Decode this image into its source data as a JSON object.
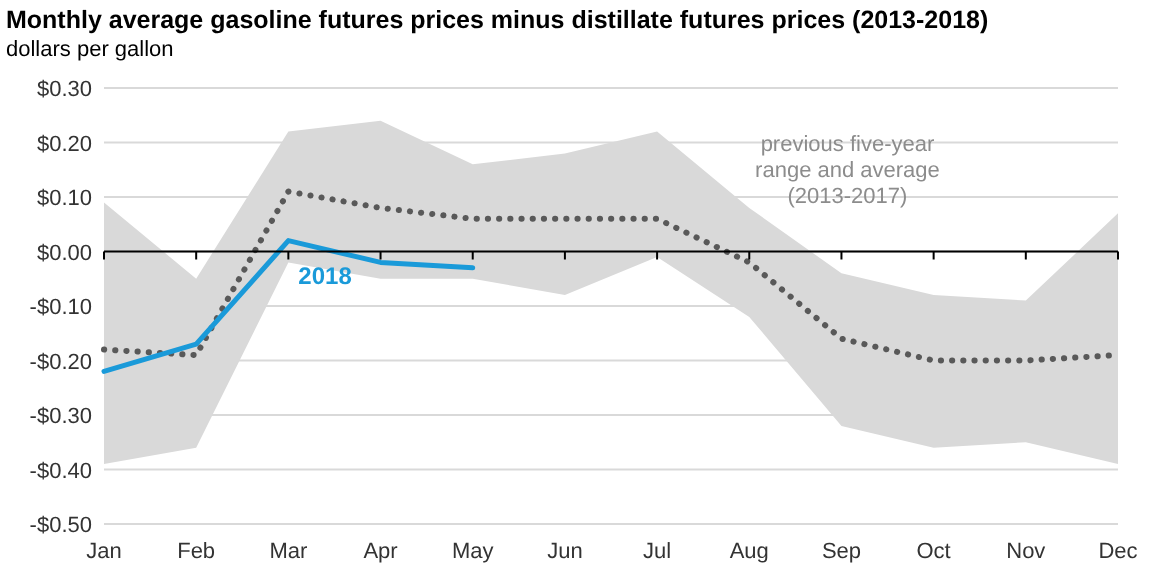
{
  "chart_data": {
    "type": "line",
    "title": "Monthly average gasoline futures prices minus distillate futures prices (2013-2018)",
    "subtitle": "dollars per gallon",
    "categories": [
      "Jan",
      "Feb",
      "Mar",
      "Apr",
      "May",
      "Jun",
      "Jul",
      "Aug",
      "Sep",
      "Oct",
      "Nov",
      "Dec"
    ],
    "series": [
      {
        "name": "previous five-year range and average (2013-2017)",
        "color": "#595959",
        "line_style": "dotted",
        "values": [
          -0.18,
          -0.19,
          0.11,
          0.08,
          0.06,
          0.06,
          0.06,
          -0.02,
          -0.16,
          -0.2,
          -0.2,
          -0.19
        ],
        "lower": [
          -0.39,
          -0.36,
          -0.02,
          -0.05,
          -0.05,
          -0.08,
          -0.01,
          -0.12,
          -0.32,
          -0.36,
          -0.35,
          -0.39
        ],
        "upper": [
          0.09,
          -0.05,
          0.22,
          0.24,
          0.16,
          0.18,
          0.22,
          0.08,
          -0.04,
          -0.08,
          -0.09,
          0.07
        ]
      },
      {
        "name": "2018",
        "color": "#1a9ad9",
        "line_style": "solid",
        "values": [
          -0.22,
          -0.17,
          0.02,
          -0.02,
          -0.03,
          null,
          null,
          null,
          null,
          null,
          null,
          null
        ]
      }
    ],
    "ylim": [
      -0.5,
      0.3
    ],
    "yticks": [
      {
        "value": 0.3,
        "label": "$0.30"
      },
      {
        "value": 0.2,
        "label": "$0.20"
      },
      {
        "value": 0.1,
        "label": "$0.10"
      },
      {
        "value": 0,
        "label": "$0.00"
      },
      {
        "value": -0.1,
        "label": "-$0.10"
      },
      {
        "value": -0.2,
        "label": "-$0.20"
      },
      {
        "value": -0.3,
        "label": "-$0.30"
      },
      {
        "value": -0.4,
        "label": "-$0.40"
      },
      {
        "value": -0.5,
        "label": "-$0.50"
      }
    ],
    "grid": "y",
    "marker": "none"
  }
}
